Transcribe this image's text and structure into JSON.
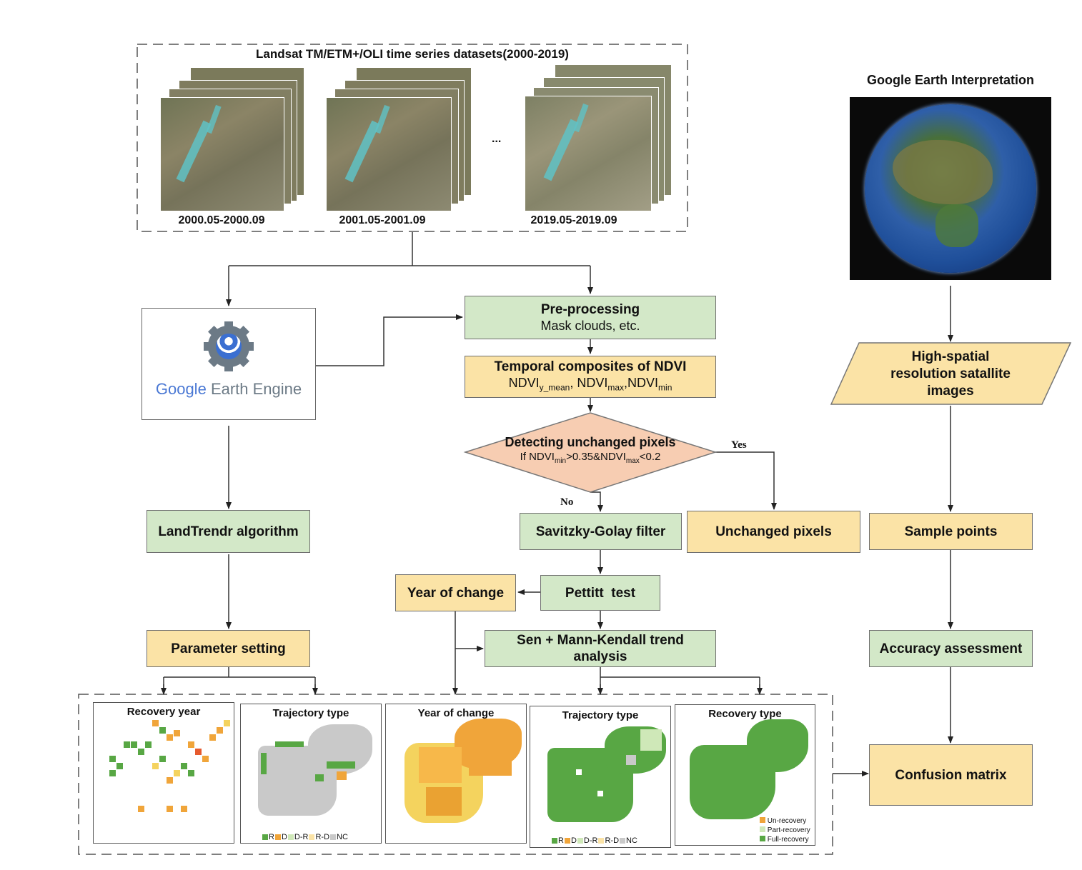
{
  "landsat": {
    "title": "Landsat TM/ETM+/OLI time series datasets(2000-2019)",
    "periods": [
      "2000.05-2000.09",
      "2001.05-2001.09",
      "2019.05-2019.09"
    ],
    "ellipsis": "..."
  },
  "google_earth": {
    "title": "Google Earth Interpretation"
  },
  "gee": {
    "google": "Google",
    "earth_engine": "Earth Engine"
  },
  "nodes": {
    "preprocessing_title": "Pre-processing",
    "preprocessing_sub": "Mask clouds, etc.",
    "composites_title": "Temporal composites of NDVI",
    "composites_sub": {
      "t1": "NDVI",
      "s1": "y_mean",
      "t2": ", NDVI",
      "s2": "max",
      "t3": ",NDVI",
      "s3": "min"
    },
    "detect_title": "Detecting unchanged pixels",
    "detect_sub": {
      "t1": "If NDVI",
      "s1": "min",
      "t2": ">0.35&NDVI",
      "s2": "max",
      "t3": "<0.2"
    },
    "yes": "Yes",
    "no": "No",
    "landtrendr": "LandTrendr algorithm",
    "savitzky": "Savitzky-Golay filter",
    "unchanged": "Unchanged pixels",
    "sample_points": "Sample points",
    "high_spatial": "High-spatial resolution satallite images",
    "pettitt": "Pettitt  test",
    "year_of_change": "Year of change",
    "sen_mk": "Sen + Mann-Kendall trend analysis",
    "parameter_setting": "Parameter setting",
    "accuracy": "Accuracy assessment",
    "confusion": "Confusion matrix"
  },
  "maps": {
    "recovery_year": "Recovery year",
    "trajectory_type_1": "Trajectory type",
    "year_of_change": "Year of change",
    "trajectory_type_2": "Trajectory type",
    "recovery_type": "Recovery type",
    "trajectory_legend": [
      "R",
      "D",
      "D-R",
      "R-D",
      "NC"
    ],
    "recovery_legend": [
      "Un-recovery",
      "Part-recovery",
      "Full-recovery"
    ]
  },
  "colors": {
    "green_box": "#d3e8c8",
    "yellow_box": "#fbe3a6",
    "diamond": "#f7cdb2",
    "map_green": "#58a744",
    "map_orange": "#f0a53a",
    "map_yellow": "#f4d35e",
    "map_gray": "#c9c9c9",
    "map_light_green": "#cfe8b8"
  }
}
